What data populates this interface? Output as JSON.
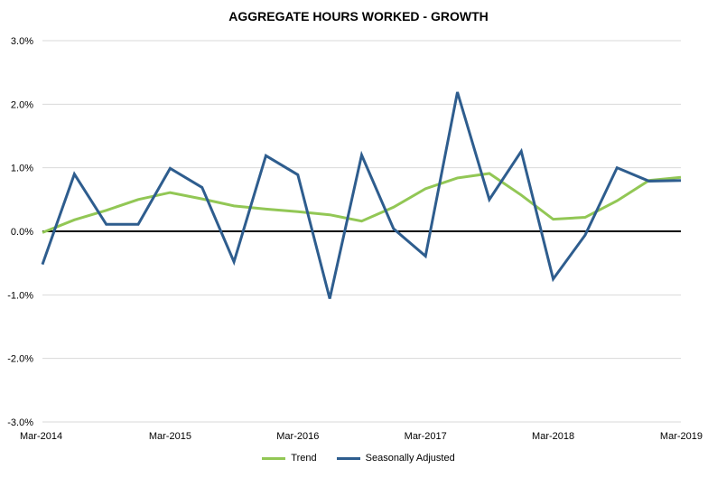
{
  "chart_data": {
    "type": "line",
    "title": "AGGREGATE HOURS WORKED - GROWTH",
    "xlabel": "",
    "ylabel": "",
    "x": [
      "Mar-2014",
      "Jun-2014",
      "Sep-2014",
      "Dec-2014",
      "Mar-2015",
      "Jun-2015",
      "Sep-2015",
      "Dec-2015",
      "Mar-2016",
      "Jun-2016",
      "Sep-2016",
      "Dec-2016",
      "Mar-2017",
      "Jun-2017",
      "Sep-2017",
      "Dec-2017",
      "Mar-2018",
      "Jun-2018",
      "Sep-2018",
      "Dec-2018",
      "Mar-2019"
    ],
    "x_tick_labels": [
      "Mar-2014",
      "Mar-2015",
      "Mar-2016",
      "Mar-2017",
      "Mar-2018",
      "Mar-2019"
    ],
    "y_ticks": [
      3.0,
      2.0,
      1.0,
      0.0,
      -1.0,
      -2.0,
      -3.0
    ],
    "y_tick_format": "percent_1dp",
    "ylim": [
      -3.0,
      3.0
    ],
    "grid": true,
    "legend": "bottom",
    "series": [
      {
        "name": "Trend",
        "color": "#92C755",
        "values": [
          -0.02,
          0.18,
          0.33,
          0.5,
          0.61,
          0.51,
          0.4,
          0.35,
          0.31,
          0.26,
          0.16,
          0.38,
          0.67,
          0.84,
          0.91,
          0.57,
          0.19,
          0.22,
          0.48,
          0.8,
          0.85
        ]
      },
      {
        "name": "Seasonally Adjusted",
        "color": "#2E5D8E",
        "values": [
          -0.52,
          0.9,
          0.11,
          0.11,
          0.99,
          0.69,
          -0.48,
          1.19,
          0.89,
          -1.06,
          1.2,
          0.04,
          -0.39,
          2.19,
          0.5,
          1.26,
          -0.75,
          -0.06,
          1.0,
          0.79,
          0.8
        ]
      }
    ]
  }
}
